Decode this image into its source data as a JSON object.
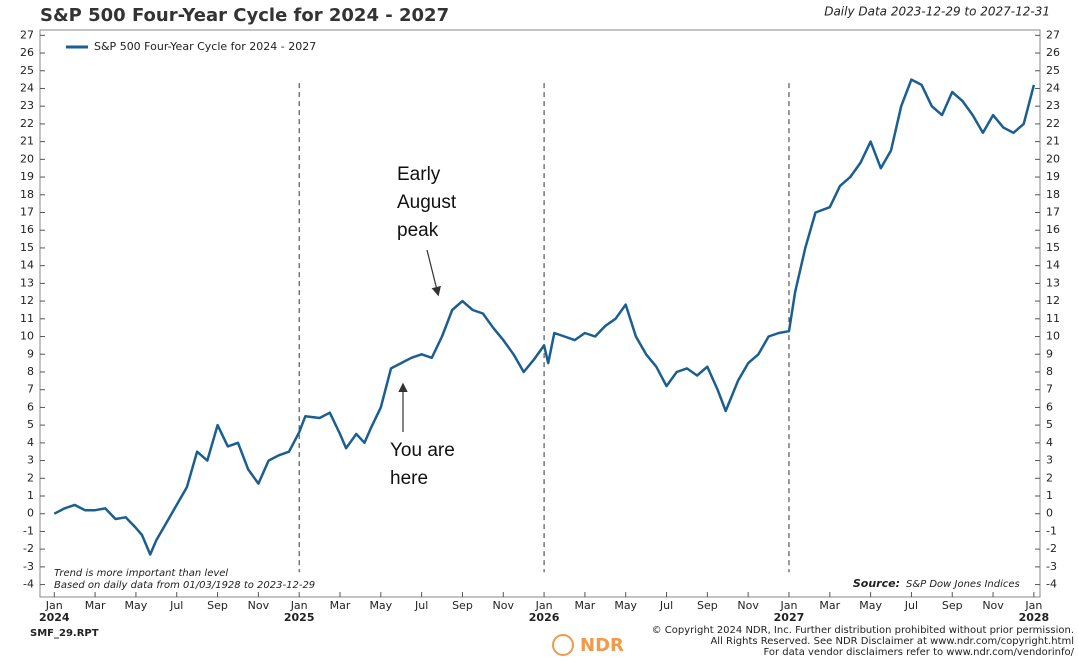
{
  "chart_data": {
    "type": "line",
    "title": "S&P 500 Four-Year Cycle for 2024 - 2027",
    "subtitle": "Daily Data 2023-12-29 to 2027-12-31",
    "xlim": [
      -0.7,
      48.3
    ],
    "ylim": [
      -4.7,
      27.3
    ],
    "yticks": [
      -4,
      -3,
      -2,
      -1,
      0,
      1,
      2,
      3,
      4,
      5,
      6,
      7,
      8,
      9,
      10,
      11,
      12,
      13,
      14,
      15,
      16,
      17,
      18,
      19,
      20,
      21,
      22,
      23,
      24,
      25,
      26,
      27
    ],
    "xticks": [
      {
        "value": 0,
        "label": "Jan"
      },
      {
        "value": 2,
        "label": "Mar"
      },
      {
        "value": 4,
        "label": "May"
      },
      {
        "value": 6,
        "label": "Jul"
      },
      {
        "value": 8,
        "label": "Sep"
      },
      {
        "value": 10,
        "label": "Nov"
      },
      {
        "value": 12,
        "label": "Jan"
      },
      {
        "value": 14,
        "label": "Mar"
      },
      {
        "value": 16,
        "label": "May"
      },
      {
        "value": 18,
        "label": "Jul"
      },
      {
        "value": 20,
        "label": "Sep"
      },
      {
        "value": 22,
        "label": "Nov"
      },
      {
        "value": 24,
        "label": "Jan"
      },
      {
        "value": 26,
        "label": "Mar"
      },
      {
        "value": 28,
        "label": "May"
      },
      {
        "value": 30,
        "label": "Jul"
      },
      {
        "value": 32,
        "label": "Sep"
      },
      {
        "value": 34,
        "label": "Nov"
      },
      {
        "value": 36,
        "label": "Jan"
      },
      {
        "value": 38,
        "label": "Mar"
      },
      {
        "value": 40,
        "label": "May"
      },
      {
        "value": 42,
        "label": "Jul"
      },
      {
        "value": 44,
        "label": "Sep"
      },
      {
        "value": 46,
        "label": "Nov"
      },
      {
        "value": 48,
        "label": "Jan"
      }
    ],
    "year_ticks": [
      {
        "value": 0,
        "label": "2024"
      },
      {
        "value": 12,
        "label": "2025"
      },
      {
        "value": 24,
        "label": "2026"
      },
      {
        "value": 36,
        "label": "2027"
      },
      {
        "value": 48,
        "label": "2028"
      }
    ],
    "year_lines": [
      12,
      24,
      36
    ],
    "series": [
      {
        "name": "S&P 500 Four-Year Cycle for 2024 - 2027",
        "color": "#1b5e91",
        "x": [
          0,
          0.5,
          1,
          1.5,
          2,
          2.5,
          3,
          3.5,
          4,
          4.3,
          4.7,
          5,
          5.5,
          6,
          6.5,
          7,
          7.5,
          8,
          8.5,
          9,
          9.5,
          10,
          10.5,
          11,
          11.5,
          12,
          12.3,
          13,
          13.5,
          14,
          14.3,
          14.8,
          15.2,
          15.5,
          16,
          16.5,
          17,
          17.5,
          18,
          18.5,
          19,
          19.5,
          20,
          20.5,
          21,
          21.5,
          22,
          22.5,
          23,
          23.5,
          24,
          24.2,
          24.5,
          25,
          25.5,
          26,
          26.5,
          27,
          27.5,
          28,
          28.5,
          29,
          29.5,
          30,
          30.5,
          31,
          31.5,
          32,
          32.5,
          32.9,
          33.5,
          34,
          34.5,
          35,
          35.5,
          36,
          36.3,
          36.8,
          37.3,
          38,
          38.5,
          39,
          39.5,
          40,
          40.5,
          41,
          41.5,
          42,
          42.5,
          43,
          43.5,
          44,
          44.5,
          45,
          45.5,
          46,
          46.5,
          47,
          47.5,
          48
        ],
        "values": [
          0,
          0.3,
          0.5,
          0.2,
          0.2,
          0.3,
          -0.3,
          -0.2,
          -0.8,
          -1.2,
          -2.3,
          -1.5,
          -0.5,
          0.5,
          1.5,
          3.5,
          3,
          5,
          3.8,
          4,
          2.5,
          1.7,
          3,
          3.3,
          3.5,
          4.6,
          5.5,
          5.4,
          5.7,
          4.5,
          3.7,
          4.5,
          4,
          4.8,
          6,
          8.2,
          8.5,
          8.8,
          9,
          8.8,
          10,
          11.5,
          12,
          11.5,
          11.3,
          10.5,
          9.8,
          9,
          8,
          8.7,
          9.5,
          8.5,
          10.2,
          10,
          9.8,
          10.2,
          10,
          10.6,
          11,
          11.8,
          10,
          9,
          8.3,
          7.2,
          8,
          8.2,
          7.8,
          8.3,
          7,
          5.8,
          7.5,
          8.5,
          9,
          10,
          10.2,
          10.3,
          12.5,
          15,
          17,
          17.3,
          18.5,
          19,
          19.8,
          21,
          19.5,
          20.5,
          23,
          24.5,
          24.2,
          23,
          22.5,
          23.8,
          23.3,
          22.5,
          21.5,
          22.5,
          21.8,
          21.5,
          22,
          24.2
        ]
      }
    ],
    "legend": "top-left",
    "annotations": [
      "Early",
      "August",
      "peak",
      "You are",
      "here"
    ],
    "notes": [
      "Trend is more important than level",
      "Based on daily data from 01/03/1928 to 2023-12-29"
    ],
    "source_label": "Source:",
    "source": "S&P Dow Jones Indices",
    "report_id": "SMF_29.RPT",
    "footer": [
      "© Copyright 2024 NDR, Inc. Further distribution prohibited without prior permission.",
      "All Rights Reserved. See NDR Disclaimer at www.ndr.com/copyright.html",
      "For data vendor disclaimers refer to www.ndr.com/vendorinfo/"
    ],
    "logo": "NDR"
  }
}
